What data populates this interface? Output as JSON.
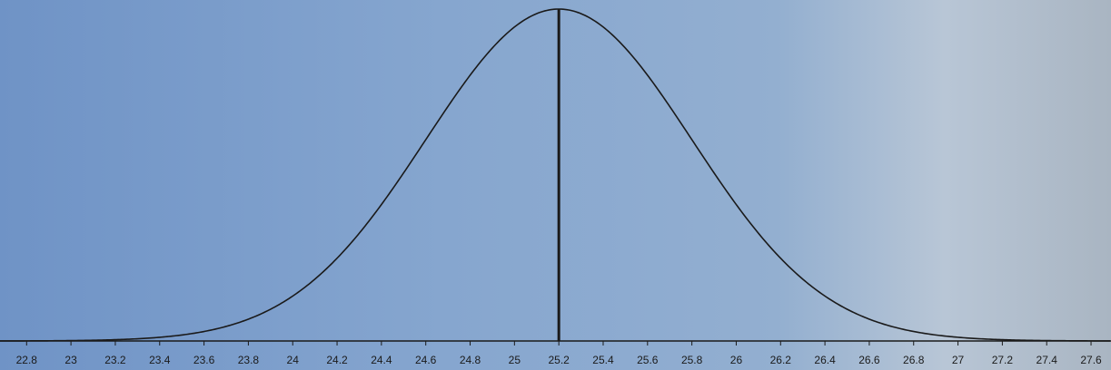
{
  "chart_data": {
    "type": "normal",
    "mean": 25.2,
    "sd": 0.6,
    "mean_line": true,
    "color": "#1a1a1a",
    "xlim": [
      22.68,
      27.69
    ],
    "xticks": [
      22.8,
      23,
      23.2,
      23.4,
      23.6,
      23.8,
      24,
      24.2,
      24.4,
      24.6,
      24.8,
      25,
      25.2,
      25.4,
      25.6,
      25.8,
      26,
      26.2,
      26.4,
      26.6,
      26.8,
      27,
      27.2,
      27.4,
      27.6
    ]
  }
}
